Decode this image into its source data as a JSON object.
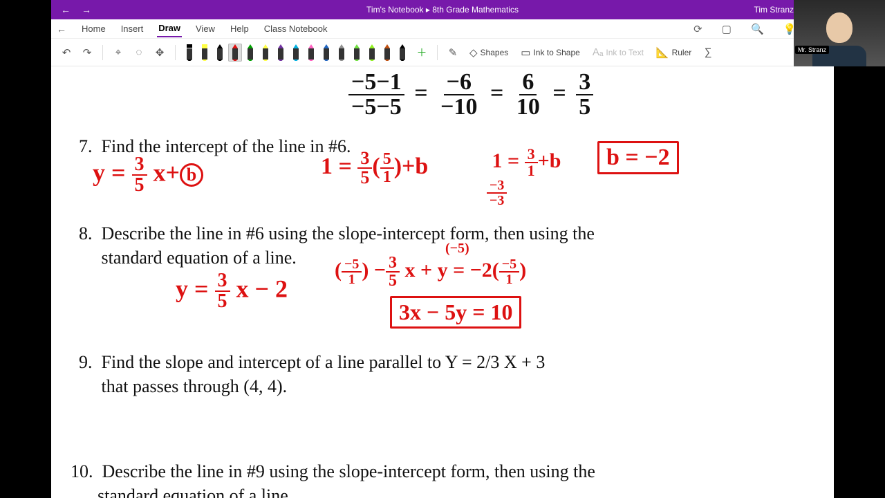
{
  "title_bar": {
    "breadcrumb": "Tim's Notebook ▸ 8th Grade Mathematics",
    "user": "Tim  Stranz",
    "accent_color": "#7719aa"
  },
  "menu": {
    "tabs": [
      "Home",
      "Insert",
      "Draw",
      "View",
      "Help",
      "Class Notebook"
    ],
    "active_index": 2
  },
  "ribbon": {
    "pens": [
      {
        "color": "#000",
        "type": "marker"
      },
      {
        "color": "#ffff44",
        "type": "highlighter"
      },
      {
        "color": "#000",
        "type": "pen"
      },
      {
        "color": "#e01010",
        "type": "pen",
        "selected": true
      },
      {
        "color": "#00a000",
        "type": "pen"
      },
      {
        "color": "#ffff44",
        "type": "pen"
      },
      {
        "color": "#7030a0",
        "type": "pen"
      },
      {
        "color": "#00b0e0",
        "type": "pen"
      },
      {
        "color": "#ff60c0",
        "type": "pen"
      },
      {
        "color": "#2065c0",
        "type": "pen"
      },
      {
        "color": "#909090",
        "type": "pen"
      },
      {
        "color": "#70e040",
        "type": "pen"
      },
      {
        "color": "#90f020",
        "type": "pen"
      },
      {
        "color": "#c05010",
        "type": "pen"
      },
      {
        "color": "#000",
        "type": "pen"
      }
    ],
    "tools": {
      "shapes": "Shapes",
      "ink_to_shape": "Ink to Shape",
      "ink_to_text": "Ink to Text",
      "ruler": "Ruler"
    }
  },
  "questions": {
    "q7": {
      "num": "7.",
      "text": "Find the intercept of the line in #6."
    },
    "q8": {
      "num": "8.",
      "text1": "Describe the line in #6 using the slope-intercept form, then using the",
      "text2": "standard equation of a line."
    },
    "q9": {
      "num": "9.",
      "text1": "Find the slope and intercept of a line parallel to Y = 2/3 X + 3",
      "text2": "that passes through (4, 4)."
    },
    "q10": {
      "num": "10.",
      "text1": "Describe the line in #9 using the slope-intercept form, then using the",
      "text2": "standard equation of a line."
    }
  },
  "work": {
    "black_frac": {
      "n1": "−5−1",
      "d1": "−5−5",
      "n2": "−6",
      "d2": "−10",
      "n3": "6",
      "d3": "10",
      "n4": "3",
      "d4": "5",
      "eq": "="
    },
    "q7_eq_frac_top": "3",
    "q7_eq_frac_bot": "5",
    "q7_sub_frac_top": "3",
    "q7_sub_frac_bot": "5",
    "q7_sub_paren_top": "5",
    "q7_sub_paren_bot": "1",
    "q7_solve2_top": "3",
    "q7_solve2_bot": "1",
    "q7_sub_minus_top": "−3",
    "q7_sub_minus_bot": "−3",
    "q7_box": "b = −2",
    "q8_slope_top": "3",
    "q8_slope_bot": "5",
    "q8_std_mul_l_top": "−5",
    "q8_std_mul_l_bot": "1",
    "q8_std_frac_top": "3",
    "q8_std_frac_bot": "5",
    "q8_std_mul_r_top": "−5",
    "q8_std_mul_r_bot": "1",
    "q8_sup": "(−5)",
    "q8_box": "3x − 5y = 10"
  },
  "webcam": {
    "tag": "Mr. Stranz"
  }
}
